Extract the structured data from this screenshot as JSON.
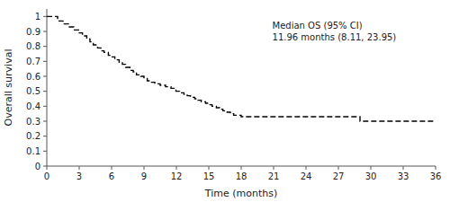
{
  "chart_data": {
    "type": "step",
    "xlabel": "Time (months)",
    "ylabel": "Overall survival",
    "annotations": [
      "Median OS (95% CI)",
      "11.96 months (8.11, 23.95)"
    ],
    "x": [
      0,
      1.0,
      1.5,
      2.0,
      2.5,
      3.0,
      3.3,
      3.7,
      4.0,
      4.3,
      4.7,
      5.0,
      5.3,
      5.7,
      6.0,
      6.3,
      6.7,
      7.0,
      7.3,
      7.7,
      8.0,
      8.3,
      8.7,
      9.0,
      9.3,
      9.7,
      10.0,
      10.5,
      11.0,
      11.5,
      11.96,
      12.3,
      12.7,
      13.0,
      13.3,
      13.7,
      14.0,
      14.3,
      14.7,
      15.0,
      15.3,
      15.7,
      16.0,
      16.3,
      16.7,
      17.0,
      17.3,
      17.7,
      18.0,
      24.0,
      29.0,
      36.0
    ],
    "values": [
      1.0,
      0.97,
      0.95,
      0.93,
      0.91,
      0.89,
      0.87,
      0.85,
      0.83,
      0.81,
      0.79,
      0.77,
      0.76,
      0.74,
      0.73,
      0.71,
      0.69,
      0.68,
      0.66,
      0.64,
      0.63,
      0.61,
      0.6,
      0.59,
      0.57,
      0.56,
      0.55,
      0.54,
      0.53,
      0.52,
      0.5,
      0.49,
      0.48,
      0.47,
      0.46,
      0.45,
      0.44,
      0.43,
      0.42,
      0.41,
      0.4,
      0.39,
      0.38,
      0.37,
      0.36,
      0.35,
      0.34,
      0.34,
      0.33,
      0.33,
      0.3,
      0.3
    ],
    "color": "#000000",
    "line_style": "dashed",
    "xlim": [
      0,
      36
    ],
    "ylim": [
      0,
      1.05
    ],
    "xticks": [
      0,
      3,
      6,
      9,
      12,
      15,
      18,
      21,
      24,
      27,
      30,
      33,
      36
    ],
    "yticks": [
      0,
      0.1,
      0.2,
      0.3,
      0.4,
      0.5,
      0.6,
      0.7,
      0.8,
      0.9,
      1
    ],
    "grid": false
  }
}
